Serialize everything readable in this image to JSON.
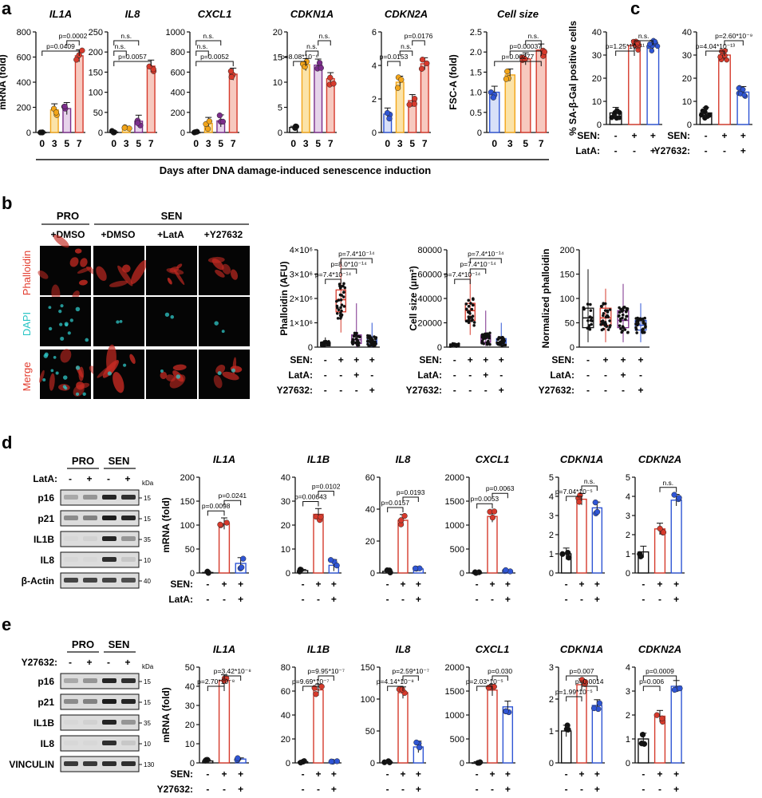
{
  "figure": {
    "panel_labels": [
      "a",
      "b",
      "c",
      "d",
      "e"
    ],
    "panel_a_xlabel": "Days after DNA damage-induced senescence induction",
    "panel_b": {
      "group_headers": [
        "PRO",
        "SEN"
      ],
      "treatments": [
        "+DMSO",
        "+DMSO",
        "+LatA",
        "+Y27632"
      ],
      "row_labels": [
        "Phalloidin",
        "DAPI",
        "Merge"
      ]
    },
    "condition_rows": {
      "sen": {
        "label": "SEN:",
        "signs": [
          "-",
          "+",
          "+"
        ]
      },
      "lata": {
        "label": "LatA:",
        "signs": [
          "-",
          "-",
          "+"
        ]
      },
      "y27632": {
        "label": "Y27632:",
        "signs": [
          "-",
          "-",
          "+"
        ]
      },
      "sen4": {
        "label": "SEN:",
        "signs": [
          "-",
          "+",
          "+",
          "+"
        ]
      },
      "lata4": {
        "label": "LatA:",
        "signs": [
          "-",
          "-",
          "+",
          "-"
        ]
      },
      "y4": {
        "label": "Y27632:",
        "signs": [
          "-",
          "-",
          "-",
          "+"
        ]
      }
    },
    "western_d": {
      "groups": [
        "PRO",
        "SEN"
      ],
      "treat_label": "LatA:",
      "treat_signs": [
        "-",
        "+",
        "-",
        "+"
      ],
      "kda_label": "kDa",
      "rows": [
        {
          "protein": "p16",
          "kda": "15"
        },
        {
          "protein": "p21",
          "kda": "15"
        },
        {
          "protein": "IL1B",
          "kda": "35"
        },
        {
          "protein": "IL8",
          "kda": "10"
        },
        {
          "protein": "β-Actin",
          "kda": "40"
        }
      ]
    },
    "western_e": {
      "groups": [
        "PRO",
        "SEN"
      ],
      "treat_label": "Y27632:",
      "treat_signs": [
        "-",
        "+",
        "-",
        "+"
      ],
      "kda_label": "kDa",
      "rows": [
        {
          "protein": "p16",
          "kda": "15"
        },
        {
          "protein": "p21",
          "kda": "15"
        },
        {
          "protein": "IL1B",
          "kda": "35"
        },
        {
          "protein": "IL8",
          "kda": "10"
        },
        {
          "protein": "VINCULIN",
          "kda": "130"
        }
      ]
    },
    "colors": {
      "black": "#111111",
      "yellow": "#f2a51a",
      "purple": "#7b2d8b",
      "red": "#d63a2c",
      "blue": "#2f55d4",
      "cyan": "#27c4c4",
      "bar_red": "#e8553f",
      "bar_yellow": "#f6c05a",
      "bar_purple": "#b58fc0"
    }
  },
  "chart_data": [
    {
      "panel": "a",
      "type": "bar",
      "title": "IL1A",
      "ylabel": "mRNA (fold)",
      "ylim": [
        0,
        800
      ],
      "yticks": [
        "0",
        "200",
        "400",
        "600",
        "800"
      ],
      "categories": [
        "0",
        "3",
        "5",
        "7"
      ],
      "values": [
        1,
        180,
        190,
        610
      ],
      "pvalues": [
        {
          "from": 0,
          "to": 3,
          "text": "p=0.0409"
        },
        {
          "from": 2,
          "to": 3,
          "text": "p=0.0002"
        }
      ]
    },
    {
      "panel": "a",
      "type": "bar",
      "title": "IL8",
      "ylim": [
        0,
        250
      ],
      "yticks": [
        "0",
        "50",
        "100",
        "150",
        "200",
        "250"
      ],
      "categories": [
        "0",
        "3",
        "5",
        "7"
      ],
      "values": [
        1,
        12,
        28,
        165
      ],
      "pvalues": [
        {
          "from": 0,
          "to": 3,
          "text": "p=0.0057"
        },
        {
          "from": 0,
          "to": 1,
          "text": "n.s."
        },
        {
          "from": 0,
          "to": 2,
          "text": "n.s."
        }
      ]
    },
    {
      "panel": "a",
      "type": "bar",
      "title": "CXCL1",
      "ylim": [
        0,
        1000
      ],
      "yticks": [
        "0",
        "200",
        "400",
        "600",
        "800",
        "1000"
      ],
      "categories": [
        "0",
        "3",
        "5",
        "7"
      ],
      "values": [
        1,
        90,
        115,
        580
      ],
      "pvalues": [
        {
          "from": 0,
          "to": 3,
          "text": "p=0.0052"
        },
        {
          "from": 0,
          "to": 1,
          "text": "n.s."
        },
        {
          "from": 0,
          "to": 2,
          "text": "n.s."
        }
      ]
    },
    {
      "panel": "a",
      "type": "bar",
      "title": "CDKN1A",
      "ylim": [
        0,
        20
      ],
      "yticks": [
        "0",
        "5",
        "10",
        "15",
        "20"
      ],
      "categories": [
        "0",
        "3",
        "5",
        "7"
      ],
      "values": [
        1,
        13.5,
        13.4,
        10.7
      ],
      "pvalues": [
        {
          "from": 0,
          "to": 1,
          "text": "p=8.08*10⁻⁶"
        },
        {
          "from": 1,
          "to": 2,
          "text": "n.s."
        },
        {
          "from": 2,
          "to": 3,
          "text": "n.s."
        }
      ]
    },
    {
      "panel": "a",
      "type": "bar",
      "title": "CDKN2A",
      "ylim": [
        0,
        6
      ],
      "yticks": [
        "0",
        "2",
        "4",
        "6"
      ],
      "categories": [
        "0",
        "3",
        "5",
        "7"
      ],
      "values": [
        1.1,
        3.0,
        1.9,
        4.1
      ],
      "pvalues": [
        {
          "from": 0,
          "to": 1,
          "text": "p=0.0153"
        },
        {
          "from": 1,
          "to": 2,
          "text": "n.s."
        },
        {
          "from": 2,
          "to": 3,
          "text": "p=0.0176"
        }
      ]
    },
    {
      "panel": "a",
      "type": "bar",
      "title": "Cell size",
      "ylabel": "FSC-A (fold)",
      "ylim": [
        0,
        2.5
      ],
      "yticks": [
        "0",
        "0.5",
        "1.0",
        "1.5",
        "2.0",
        "2.5"
      ],
      "categories": [
        "0",
        "3",
        "5",
        "7"
      ],
      "values": [
        1.0,
        1.43,
        1.83,
        2.05
      ],
      "pvalues": [
        {
          "from": 0,
          "to": 3,
          "text": "p=0.00277"
        },
        {
          "from": 1,
          "to": 3,
          "text": "p=0.00037"
        },
        {
          "from": 2,
          "to": 3,
          "text": "n.s."
        }
      ]
    },
    {
      "panel": "c",
      "type": "bar",
      "ylabel": "% SA-β-Gal positive cells",
      "ylim": [
        0,
        40
      ],
      "yticks": [
        "0",
        "10",
        "20",
        "30",
        "40"
      ],
      "values": [
        5,
        34,
        34
      ],
      "pvalues": [
        {
          "from": 0,
          "to": 1,
          "text": "p=1.25*10⁻¹¹"
        },
        {
          "from": 1,
          "to": 2,
          "text": "n.s."
        }
      ],
      "rows": [
        "sen",
        "lata"
      ]
    },
    {
      "panel": "c",
      "type": "bar",
      "ylim": [
        0,
        40
      ],
      "yticks": [
        "0",
        "10",
        "20",
        "30",
        "40"
      ],
      "values": [
        5,
        30,
        14
      ],
      "pvalues": [
        {
          "from": 0,
          "to": 1,
          "text": "p=4.04*10⁻¹³"
        },
        {
          "from": 1,
          "to": 2,
          "text": "p=2.60*10⁻⁹"
        }
      ],
      "rows": [
        "sen",
        "y27632"
      ]
    },
    {
      "panel": "b",
      "type": "box",
      "ylabel": "Phalloidin (AFU)",
      "ylim": [
        0,
        4000000
      ],
      "yticks": [
        "0",
        "1×10⁶",
        "2×10⁶",
        "3×10⁶",
        "4×10⁶"
      ],
      "medians": [
        100000,
        1950000,
        300000,
        250000
      ],
      "q1": [
        50000,
        1450000,
        150000,
        120000
      ],
      "q3": [
        200000,
        2350000,
        500000,
        400000
      ],
      "whisker_low": [
        0,
        600000,
        0,
        0
      ],
      "whisker_high": [
        400000,
        3600000,
        1800000,
        1000000
      ],
      "pvalues": [
        {
          "from": 0,
          "to": 1,
          "text": "p=7.4*10⁻¹⁴"
        },
        {
          "from": 1,
          "to": 2,
          "text": "p=8.0*10⁻¹⁴"
        },
        {
          "from": 1,
          "to": 3,
          "text": "p=7.4*10⁻¹⁴"
        }
      ]
    },
    {
      "panel": "b",
      "type": "box",
      "ylabel": "Cell size (μm²)",
      "ylim": [
        0,
        80000
      ],
      "yticks": [
        "0",
        "20000",
        "40000",
        "60000",
        "80000"
      ],
      "medians": [
        1500,
        30000,
        7000,
        4000
      ],
      "q1": [
        1000,
        22000,
        4000,
        2500
      ],
      "q3": [
        2500,
        36000,
        10000,
        7000
      ],
      "whisker_low": [
        0,
        10000,
        1000,
        1000
      ],
      "whisker_high": [
        4000,
        60000,
        30000,
        20000
      ],
      "pvalues": [
        {
          "from": 0,
          "to": 1,
          "text": "p=7.4*10⁻¹⁴"
        },
        {
          "from": 1,
          "to": 2,
          "text": "p=7.4*10⁻¹⁴"
        },
        {
          "from": 1,
          "to": 3,
          "text": "p=7.4*10⁻¹⁴"
        }
      ]
    },
    {
      "panel": "b",
      "type": "box",
      "ylabel": "Normalized phalloidin",
      "ylim": [
        0,
        200
      ],
      "yticks": [
        "0",
        "50",
        "100",
        "150",
        "200"
      ],
      "medians": [
        60,
        60,
        55,
        45
      ],
      "q1": [
        40,
        45,
        40,
        35
      ],
      "q3": [
        80,
        80,
        75,
        55
      ],
      "whisker_low": [
        10,
        10,
        10,
        10
      ],
      "whisker_high": [
        160,
        120,
        130,
        90
      ],
      "pvalues": []
    },
    {
      "panel": "d",
      "type": "bar",
      "title": "IL1A",
      "ylabel": "mRNA (fold)",
      "ylim": [
        0,
        200
      ],
      "yticks": [
        "0",
        "50",
        "100",
        "150",
        "200"
      ],
      "values": [
        1,
        103,
        20
      ],
      "pvalues": [
        {
          "from": 0,
          "to": 1,
          "text": "p=0.0098"
        },
        {
          "from": 1,
          "to": 2,
          "text": "p=0.0241"
        }
      ]
    },
    {
      "panel": "d",
      "type": "bar",
      "title": "IL1B",
      "ylim": [
        0,
        40
      ],
      "yticks": [
        "0",
        "10",
        "20",
        "30",
        "40"
      ],
      "values": [
        1,
        24.5,
        3.2
      ],
      "pvalues": [
        {
          "from": 0,
          "to": 1,
          "text": "p=0.00643"
        },
        {
          "from": 1,
          "to": 2,
          "text": "p=0.0102"
        }
      ]
    },
    {
      "panel": "d",
      "type": "bar",
      "title": "IL8",
      "ylim": [
        0,
        60
      ],
      "yticks": [
        "0",
        "20",
        "40",
        "60"
      ],
      "values": [
        1,
        33,
        2.5
      ],
      "pvalues": [
        {
          "from": 0,
          "to": 1,
          "text": "p=0.0157"
        },
        {
          "from": 1,
          "to": 2,
          "text": "p=0.0193"
        }
      ]
    },
    {
      "panel": "d",
      "type": "bar",
      "title": "CXCL1",
      "ylim": [
        0,
        2000
      ],
      "yticks": [
        "0",
        "500",
        "1000",
        "1500",
        "2000"
      ],
      "values": [
        1,
        1180,
        40
      ],
      "pvalues": [
        {
          "from": 0,
          "to": 1,
          "text": "p=0.0053"
        },
        {
          "from": 1,
          "to": 2,
          "text": "p=0.0063"
        }
      ]
    },
    {
      "panel": "d",
      "type": "bar",
      "title": "CDKN1A",
      "ylim": [
        0,
        5
      ],
      "yticks": [
        "0",
        "1",
        "2",
        "3",
        "4",
        "5"
      ],
      "values": [
        1,
        3.85,
        3.4
      ],
      "pvalues": [
        {
          "from": 0,
          "to": 1,
          "text": "p=7.04*10⁻⁵"
        },
        {
          "from": 1,
          "to": 2,
          "text": "n.s."
        }
      ]
    },
    {
      "panel": "d",
      "type": "bar",
      "title": "CDKN2A",
      "ylim": [
        0,
        5
      ],
      "yticks": [
        "0",
        "1",
        "2",
        "3",
        "4",
        "5"
      ],
      "values": [
        1.1,
        2.3,
        3.8
      ],
      "pvalues": [
        {
          "from": 1,
          "to": 2,
          "text": "n.s."
        }
      ]
    },
    {
      "panel": "e",
      "type": "bar",
      "title": "IL1A",
      "ylabel": "mRNA (fold)",
      "ylim": [
        0,
        50
      ],
      "yticks": [
        "0",
        "10",
        "20",
        "30",
        "40",
        "50"
      ],
      "values": [
        1,
        43,
        2
      ],
      "pvalues": [
        {
          "from": 0,
          "to": 1,
          "text": "p=2.70*10⁻⁸"
        },
        {
          "from": 1,
          "to": 2,
          "text": "p=3.42*10⁻⁸"
        }
      ]
    },
    {
      "panel": "e",
      "type": "bar",
      "title": "IL1B",
      "ylim": [
        0,
        80
      ],
      "yticks": [
        "0",
        "20",
        "40",
        "60",
        "80"
      ],
      "values": [
        1,
        61,
        1
      ],
      "pvalues": [
        {
          "from": 0,
          "to": 1,
          "text": "p=9.69*10⁻⁷"
        },
        {
          "from": 1,
          "to": 2,
          "text": "p=9.95*10⁻⁷"
        }
      ]
    },
    {
      "panel": "e",
      "type": "bar",
      "title": "IL8",
      "ylim": [
        0,
        150
      ],
      "yticks": [
        "0",
        "50",
        "100",
        "150"
      ],
      "values": [
        1,
        110,
        25
      ],
      "pvalues": [
        {
          "from": 0,
          "to": 1,
          "text": "p=4.14*10⁻⁸"
        },
        {
          "from": 1,
          "to": 2,
          "text": "p=2.59*10⁻⁷"
        }
      ]
    },
    {
      "panel": "e",
      "type": "bar",
      "title": "CXCL1",
      "ylim": [
        0,
        2000
      ],
      "yticks": [
        "0",
        "500",
        "1000",
        "1500",
        "2000"
      ],
      "values": [
        1,
        1520,
        1170
      ],
      "pvalues": [
        {
          "from": 0,
          "to": 1,
          "text": "p=2.03*10⁻⁵"
        },
        {
          "from": 1,
          "to": 2,
          "text": "p=0.030"
        }
      ]
    },
    {
      "panel": "e",
      "type": "bar",
      "title": "CDKN1A",
      "ylim": [
        0,
        3
      ],
      "yticks": [
        "0",
        "1",
        "2",
        "3"
      ],
      "values": [
        1,
        2.45,
        1.8
      ],
      "pvalues": [
        {
          "from": 0,
          "to": 1,
          "text": "p=1.99*10⁻⁵"
        },
        {
          "from": 1,
          "to": 2,
          "text": "p=0.0014"
        },
        {
          "from": 0,
          "to": 2,
          "text": "p=0.007"
        }
      ]
    },
    {
      "panel": "e",
      "type": "bar",
      "title": "CDKN2A",
      "ylim": [
        0,
        4
      ],
      "yticks": [
        "0",
        "1",
        "2",
        "3",
        "4"
      ],
      "values": [
        1,
        1.95,
        3.2
      ],
      "pvalues": [
        {
          "from": 0,
          "to": 1,
          "text": "p=0.006"
        },
        {
          "from": 0,
          "to": 2,
          "text": "p=0.0009"
        }
      ]
    }
  ]
}
